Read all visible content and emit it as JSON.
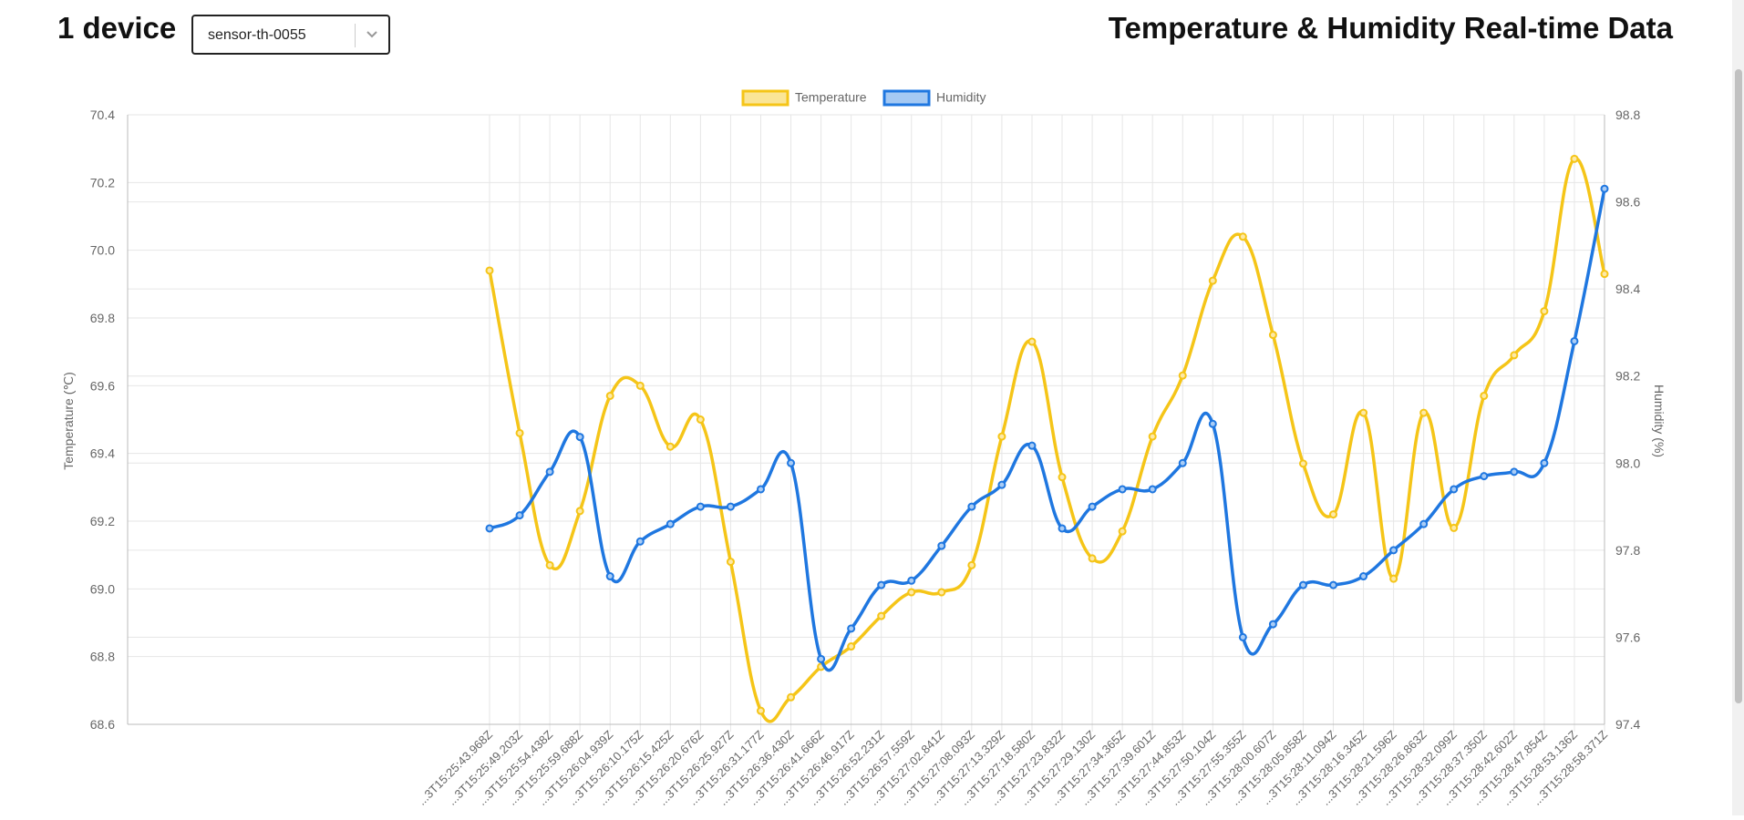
{
  "header": {
    "device_count": "1 device",
    "selected_device": "sensor-th-0055",
    "title": "Temperature & Humidity Real-time Data"
  },
  "colors": {
    "temperature": "#f5c518",
    "humidity": "#1f77e0",
    "grid": "#e6e6e6",
    "axis_text": "#666666"
  },
  "chart_data": {
    "type": "line",
    "legend": {
      "placement": "top-center"
    },
    "grid": true,
    "ylabel_left": "Temperature (℃)",
    "ylabel_right": "Humidity (%)",
    "ylim_left": [
      68.6,
      70.4
    ],
    "ylim_right": [
      97.4,
      98.8
    ],
    "yticks_left": [
      "70.4",
      "70.2",
      "70.0",
      "69.8",
      "69.6",
      "69.4",
      "69.2",
      "69.0",
      "68.8",
      "68.6"
    ],
    "yticks_right": [
      "98.8",
      "98.6",
      "98.4",
      "98.2",
      "98.0",
      "97.8",
      "97.6",
      "97.4"
    ],
    "categories": [
      "...3T15:25:43.968Z",
      "...3T15:25:49.203Z",
      "...3T15:25:54.438Z",
      "...3T15:25:59.688Z",
      "...3T15:26:04.939Z",
      "...3T15:26:10.175Z",
      "...3T15:26:15.425Z",
      "...3T15:26:20.676Z",
      "...3T15:26:25.927Z",
      "...3T15:26:31.177Z",
      "...3T15:26:36.430Z",
      "...3T15:26:41.666Z",
      "...3T15:26:46.917Z",
      "...3T15:26:52.231Z",
      "...3T15:26:57.559Z",
      "...3T15:27:02.841Z",
      "...3T15:27:08.093Z",
      "...3T15:27:13.329Z",
      "...3T15:27:18.580Z",
      "...3T15:27:23.832Z",
      "...3T15:27:29.130Z",
      "...3T15:27:34.365Z",
      "...3T15:27:39.601Z",
      "...3T15:27:44.853Z",
      "...3T15:27:50.104Z",
      "...3T15:27:55.355Z",
      "...3T15:28:00.607Z",
      "...3T15:28:05.858Z",
      "...3T15:28:11.094Z",
      "...3T15:28:16.345Z",
      "...3T15:28:21.596Z",
      "...3T15:28:26.863Z",
      "...3T15:28:32.099Z",
      "...3T15:28:37.350Z",
      "...3T15:28:42.602Z",
      "...3T15:28:47.854Z",
      "...3T15:28:53.136Z",
      "...3T15:28:58.371Z"
    ],
    "series": [
      {
        "name": "Temperature",
        "axis": "left",
        "values": [
          69.94,
          69.46,
          69.07,
          69.23,
          69.57,
          69.6,
          69.42,
          69.5,
          69.08,
          68.64,
          68.68,
          68.77,
          68.83,
          68.92,
          68.99,
          68.99,
          69.07,
          69.45,
          69.73,
          69.33,
          69.09,
          69.17,
          69.45,
          69.63,
          69.91,
          70.04,
          69.75,
          69.37,
          69.22,
          69.52,
          69.03,
          69.52,
          69.18,
          69.57,
          69.69,
          69.82,
          70.27,
          69.93
        ]
      },
      {
        "name": "Humidity",
        "axis": "right",
        "values": [
          97.85,
          97.88,
          97.98,
          98.06,
          97.74,
          97.82,
          97.86,
          97.9,
          97.9,
          97.94,
          98.0,
          97.55,
          97.62,
          97.72,
          97.73,
          97.81,
          97.9,
          97.95,
          98.04,
          97.85,
          97.9,
          97.94,
          97.94,
          98.0,
          98.09,
          97.6,
          97.63,
          97.72,
          97.72,
          97.74,
          97.8,
          97.86,
          97.94,
          97.97,
          97.98,
          98.0,
          98.28,
          98.63
        ]
      }
    ]
  }
}
